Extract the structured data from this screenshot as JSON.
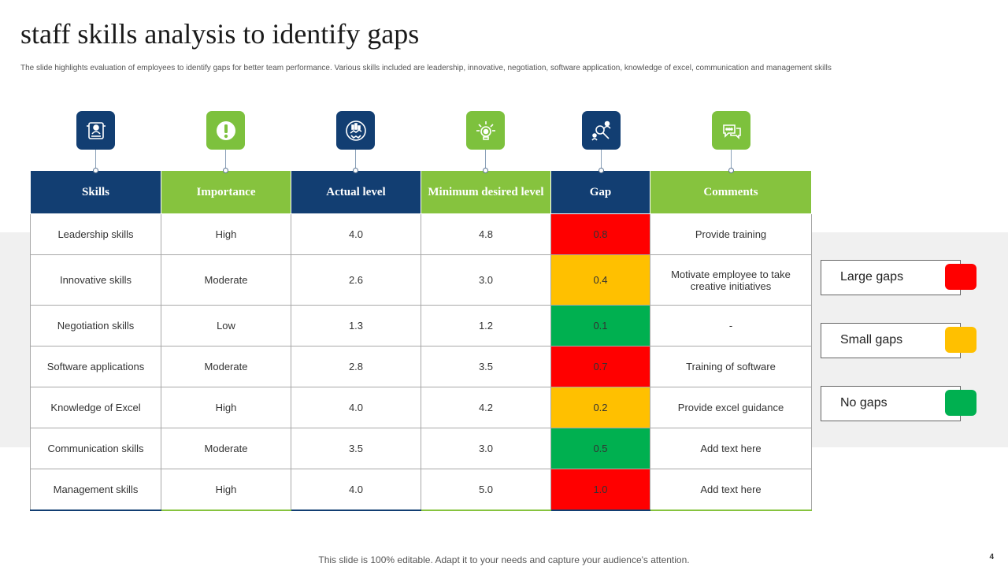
{
  "title": "staff skills analysis to identify gaps",
  "subtitle": "The slide highlights evaluation of employees to identify gaps for better team performance. Various skills included are leadership, innovative, negotiation, software application, knowledge of excel, communication and management skills",
  "icons": [
    "skills-id-card-icon",
    "exclamation-icon",
    "handshake-growth-icon",
    "gear-bulb-icon",
    "user-search-icon",
    "chat-bubbles-icon"
  ],
  "colors": {
    "blue": "#123e72",
    "green": "#86c33e",
    "red": "#ff0000",
    "yellow": "#ffc000",
    "gap_green": "#00b050"
  },
  "table": {
    "headers": [
      "Skills",
      "Importance",
      "Actual level",
      "Minimum desired level",
      "Gap",
      "Comments"
    ],
    "rows": [
      {
        "skill": "Leadership skills",
        "importance": "High",
        "actual": "4.0",
        "minimum": "4.8",
        "gap": "0.8",
        "status": "large",
        "comment": "Provide training"
      },
      {
        "skill": "Innovative skills",
        "importance": "Moderate",
        "actual": "2.6",
        "minimum": "3.0",
        "gap": "0.4",
        "status": "small",
        "comment": "Motivate employee to take creative initiatives"
      },
      {
        "skill": "Negotiation skills",
        "importance": "Low",
        "actual": "1.3",
        "minimum": "1.2",
        "gap": "0.1",
        "status": "none",
        "comment": "-"
      },
      {
        "skill": "Software applications",
        "importance": "Moderate",
        "actual": "2.8",
        "minimum": "3.5",
        "gap": "0.7",
        "status": "large",
        "comment": "Training of software"
      },
      {
        "skill": "Knowledge of Excel",
        "importance": "High",
        "actual": "4.0",
        "minimum": "4.2",
        "gap": "0.2",
        "status": "small",
        "comment": "Provide excel guidance"
      },
      {
        "skill": "Communication skills",
        "importance": "Moderate",
        "actual": "3.5",
        "minimum": "3.0",
        "gap": "0.5",
        "status": "none",
        "comment": "Add text here"
      },
      {
        "skill": "Management skills",
        "importance": "High",
        "actual": "4.0",
        "minimum": "5.0",
        "gap": "1.0",
        "status": "large",
        "comment": "Add text here"
      }
    ]
  },
  "legend": [
    {
      "label": "Large gaps",
      "color": "#ff0000"
    },
    {
      "label": "Small gaps",
      "color": "#ffc000"
    },
    {
      "label": "No gaps",
      "color": "#00b050"
    }
  ],
  "footer": "This slide is 100% editable. Adapt it to your needs and capture your audience's attention.",
  "page_number": "4"
}
